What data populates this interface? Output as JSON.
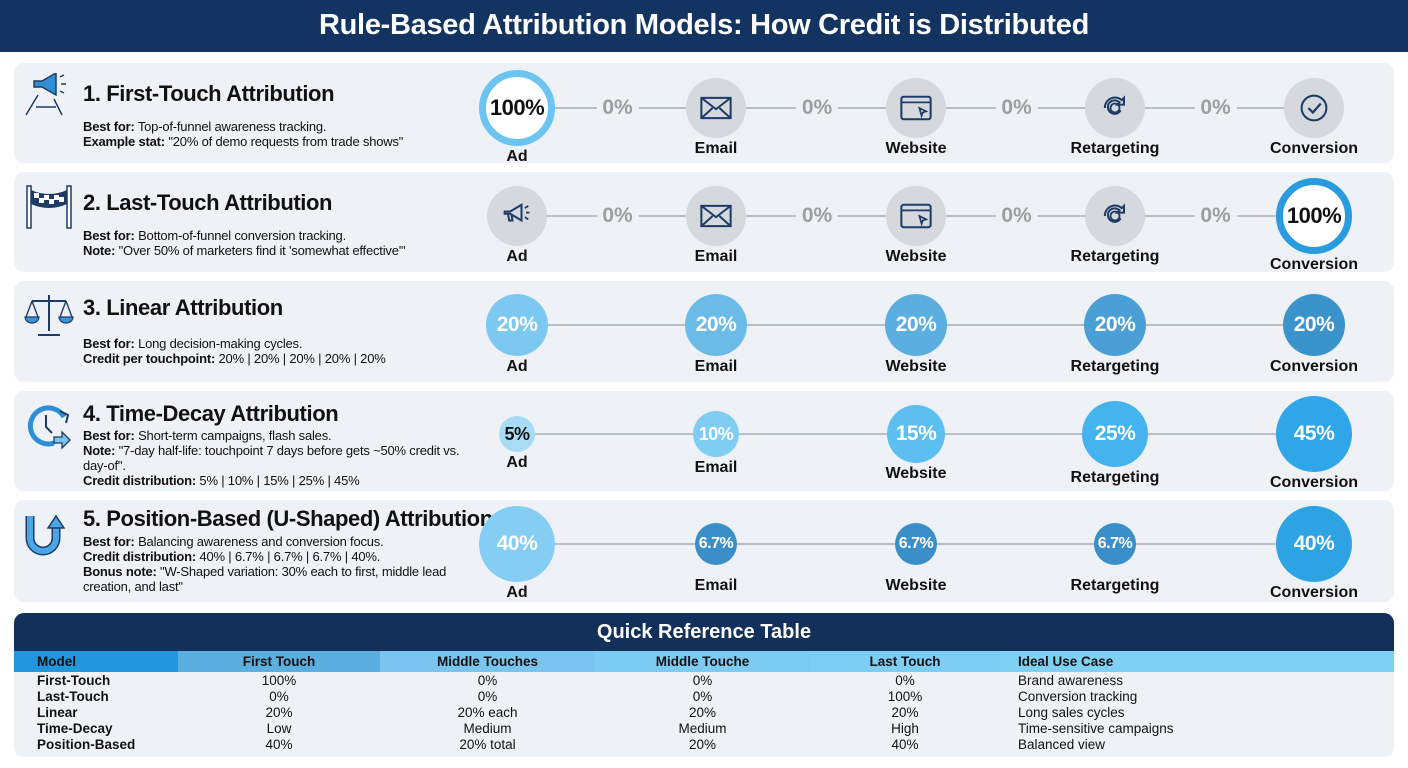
{
  "title": "Rule-Based Attribution Models: How Credit is Distributed",
  "touchpoints": [
    "Ad",
    "Email",
    "Website",
    "Retargeting",
    "Conversion"
  ],
  "models": [
    {
      "title": "1. First-Touch Attribution",
      "icon": "megaphone-funnel-icon",
      "lines": [
        {
          "k": "Best for:",
          "v": " Top-of-funnel awareness tracking."
        },
        {
          "k": "Example stat:",
          "v": " \"20% of demo requests from trade shows\""
        }
      ],
      "credits": [
        "100%",
        "0%",
        "0%",
        "0%",
        "0%"
      ],
      "style": "first"
    },
    {
      "title": "2. Last-Touch Attribution",
      "icon": "checkered-flag-icon",
      "lines": [
        {
          "k": "Best for:",
          "v": " Bottom-of-funnel conversion tracking."
        },
        {
          "k": "Note:",
          "v": " \"Over 50% of marketers find it 'somewhat effective'\""
        }
      ],
      "credits": [
        "0%",
        "0%",
        "0%",
        "0%",
        "100%"
      ],
      "style": "last"
    },
    {
      "title": "3. Linear Attribution",
      "icon": "balance-scale-icon",
      "lines": [
        {
          "k": "Best for:",
          "v": " Long decision-making cycles."
        },
        {
          "k": "Credit per touchpoint:",
          "v": " 20% | 20% | 20% | 20% | 20%"
        }
      ],
      "credits": [
        "20%",
        "20%",
        "20%",
        "20%",
        "20%"
      ],
      "style": "linear"
    },
    {
      "title": "4. Time-Decay Attribution",
      "icon": "clock-arrow-icon",
      "lines": [
        {
          "k": "Best for:",
          "v": " Short-term campaigns, flash sales."
        },
        {
          "k": "Note:",
          "v": " \"7-day half-life: touchpoint 7 days before gets ~50% credit vs. day-of\"."
        },
        {
          "k": "Credit distribution:",
          "v": " 5% | 10% | 15% | 25% | 45%"
        }
      ],
      "credits": [
        "5%",
        "10%",
        "15%",
        "25%",
        "45%"
      ],
      "style": "decay"
    },
    {
      "title": "5. Position-Based (U-Shaped) Attribution",
      "icon": "u-turn-arrow-icon",
      "lines": [
        {
          "k": "Best for:",
          "v": " Balancing awareness and conversion focus."
        },
        {
          "k": "Credit distribution:",
          "v": " 40% | 6.7% | 6.7% | 6.7% | 40%."
        },
        {
          "k": "Bonus note:",
          "v": " \"W-Shaped variation: 30% each to first, middle lead creation, and last\""
        }
      ],
      "credits": [
        "40%",
        "6.7%",
        "6.7%",
        "6.7%",
        "40%"
      ],
      "style": "position"
    }
  ],
  "touchpoint_icons": [
    "megaphone-icon",
    "envelope-icon",
    "browser-window-icon",
    "refresh-icon",
    "checkmark-icon"
  ],
  "colors": {
    "navy": "#133460",
    "ring_first": "#6cc4f0",
    "ring_last": "#2b9be0",
    "inactive": "#d5d9de"
  },
  "table": {
    "title": "Quick Reference Table",
    "headers": [
      "Model",
      "First Touch",
      "Middle Touches",
      "Middle Touche",
      "Last Touch",
      "Ideal Use Case"
    ],
    "rows": [
      [
        "First-Touch",
        "100%",
        "0%",
        "0%",
        "0%",
        "Brand awareness"
      ],
      [
        "Last-Touch",
        "0%",
        "0%",
        "0%",
        "100%",
        "Conversion tracking"
      ],
      [
        "Linear",
        "20%",
        "20% each",
        "20%",
        "20%",
        "Long sales cycles"
      ],
      [
        "Time-Decay",
        "Low",
        "Medium",
        "Medium",
        "High",
        "Time-sensitive campaigns"
      ],
      [
        "Position-Based",
        "40%",
        "20% total",
        "20%",
        "40%",
        "Balanced view"
      ]
    ]
  }
}
